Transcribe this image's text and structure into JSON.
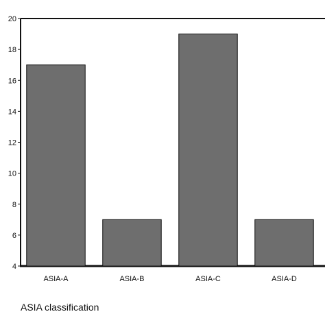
{
  "chart_data": {
    "type": "bar",
    "categories": [
      "ASIA-A",
      "ASIA-B",
      "ASIA-C",
      "ASIA-D"
    ],
    "values": [
      17,
      7,
      19,
      7
    ],
    "xlabel": "ASIA classification",
    "ylabel": "",
    "ylim": [
      4,
      20
    ],
    "yticks": [
      4,
      6,
      8,
      10,
      12,
      14,
      16,
      18,
      20
    ],
    "grid": false,
    "legend": false,
    "bar_color": "#6e6e6e",
    "bar_edge_color": "#111111"
  }
}
